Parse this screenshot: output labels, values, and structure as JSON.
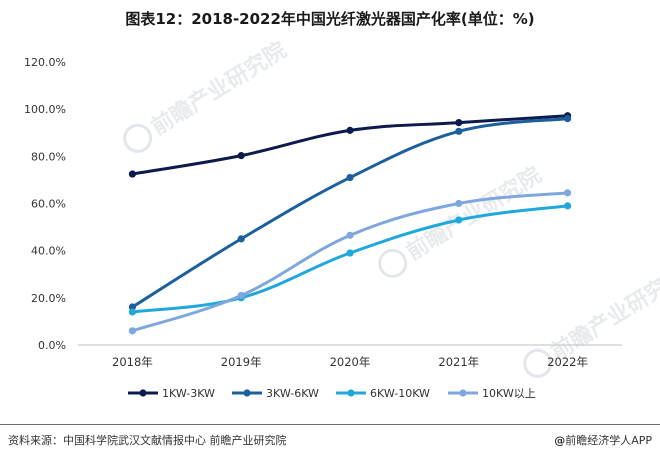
{
  "title": "图表12：2018-2022年中国光纤激光器国产化率(单位：%)",
  "footer": {
    "source": "资料来源：中国科学院武汉文献情报中心 前瞻产业研究院",
    "credit_symbol": "@",
    "credit": "前瞻经济学人APP"
  },
  "watermark": "前瞻产业研究院",
  "chart_data": {
    "type": "line",
    "title": "图表12：2018-2022年中国光纤激光器国产化率(单位：%)",
    "categories": [
      "2018年",
      "2019年",
      "2020年",
      "2021年",
      "2022年"
    ],
    "y_ticks": [
      "0.0%",
      "20.0%",
      "40.0%",
      "60.0%",
      "80.0%",
      "100.0%",
      "120.0%"
    ],
    "ylim": [
      0,
      120
    ],
    "xlabel": "",
    "ylabel": "",
    "grid": false,
    "legend_position": "bottom",
    "series": [
      {
        "name": "1KW-3KW",
        "color": "#0d1b4c",
        "values": [
          72.5,
          80.3,
          91.0,
          94.3,
          97.2
        ]
      },
      {
        "name": "3KW-6KW",
        "color": "#1b5f9c",
        "values": [
          16.1,
          45.0,
          71.0,
          90.6,
          96.0
        ]
      },
      {
        "name": "6KW-10KW",
        "color": "#20a8dd",
        "values": [
          14.0,
          20.0,
          39.0,
          53.0,
          59.0
        ]
      },
      {
        "name": "10KW以上",
        "color": "#7ea7dd",
        "values": [
          6.0,
          21.0,
          46.5,
          60.0,
          64.5
        ]
      }
    ]
  }
}
